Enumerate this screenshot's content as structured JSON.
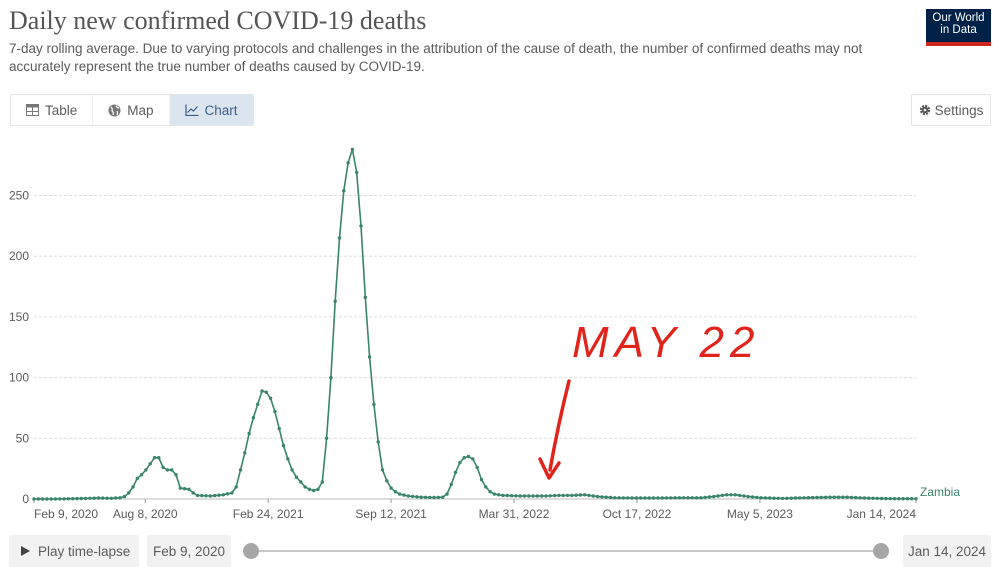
{
  "header": {
    "title": "Daily new confirmed COVID-19 deaths",
    "subtitle": "7-day rolling average. Due to varying protocols and challenges in the attribution of the cause of death, the number of confirmed deaths may not accurately represent the true number of deaths caused by COVID-19.",
    "logo_line1": "Our World",
    "logo_line2": "in Data"
  },
  "tabs": [
    {
      "label": "Table",
      "icon": "table-icon",
      "active": false
    },
    {
      "label": "Map",
      "icon": "globe-icon",
      "active": false
    },
    {
      "label": "Chart",
      "icon": "line-chart-icon",
      "active": true
    }
  ],
  "settings_label": "Settings",
  "colors": {
    "series": "#3a8469",
    "annotation": "#e0241c",
    "grid": "#dddddd",
    "axis_text": "#5b5b5b"
  },
  "annotation": {
    "text": "MAY 22",
    "points_to": "2022-05-22"
  },
  "controls": {
    "play_label": "Play time-lapse",
    "start_date": "Feb 9, 2020",
    "end_date": "Jan 14, 2024",
    "range_start_fraction": 0,
    "range_end_fraction": 1
  },
  "chart_data": {
    "type": "line",
    "title": "Daily new confirmed COVID-19 deaths",
    "xlabel": "",
    "ylabel": "",
    "ylim": [
      0,
      290
    ],
    "yticks": [
      0,
      50,
      100,
      150,
      200,
      250
    ],
    "xlim": [
      "2020-02-09",
      "2024-01-14"
    ],
    "xticks": [
      {
        "date": "2020-02-09",
        "label": "Feb 9, 2020"
      },
      {
        "date": "2020-08-08",
        "label": "Aug 8, 2020"
      },
      {
        "date": "2021-02-24",
        "label": "Feb 24, 2021"
      },
      {
        "date": "2021-09-12",
        "label": "Sep 12, 2021"
      },
      {
        "date": "2022-03-31",
        "label": "Mar 31, 2022"
      },
      {
        "date": "2022-10-17",
        "label": "Oct 17, 2022"
      },
      {
        "date": "2023-05-05",
        "label": "May 5, 2023"
      },
      {
        "date": "2024-01-14",
        "label": "Jan 14, 2024"
      }
    ],
    "grid": true,
    "legend": "end-of-line label",
    "series": [
      {
        "name": "Zambia",
        "points": [
          [
            "2020-02-09",
            0
          ],
          [
            "2020-03-15",
            0
          ],
          [
            "2020-04-19",
            0.3
          ],
          [
            "2020-05-24",
            0.8
          ],
          [
            "2020-06-14",
            0.6
          ],
          [
            "2020-06-28",
            1
          ],
          [
            "2020-07-05",
            2
          ],
          [
            "2020-07-12",
            5
          ],
          [
            "2020-07-19",
            10
          ],
          [
            "2020-07-26",
            17
          ],
          [
            "2020-08-02",
            20
          ],
          [
            "2020-08-09",
            24
          ],
          [
            "2020-08-16",
            29
          ],
          [
            "2020-08-23",
            34
          ],
          [
            "2020-08-30",
            34
          ],
          [
            "2020-09-06",
            26
          ],
          [
            "2020-09-13",
            24
          ],
          [
            "2020-09-20",
            24
          ],
          [
            "2020-09-27",
            20
          ],
          [
            "2020-10-04",
            9
          ],
          [
            "2020-10-18",
            8
          ],
          [
            "2020-10-25",
            5
          ],
          [
            "2020-11-01",
            3
          ],
          [
            "2020-11-22",
            2.5
          ],
          [
            "2020-12-13",
            3.5
          ],
          [
            "2020-12-27",
            5
          ],
          [
            "2021-01-03",
            10
          ],
          [
            "2021-01-10",
            24
          ],
          [
            "2021-01-17",
            38
          ],
          [
            "2021-01-24",
            54
          ],
          [
            "2021-01-31",
            67
          ],
          [
            "2021-02-07",
            78
          ],
          [
            "2021-02-14",
            89
          ],
          [
            "2021-02-21",
            88
          ],
          [
            "2021-02-28",
            83
          ],
          [
            "2021-03-07",
            72
          ],
          [
            "2021-03-14",
            58
          ],
          [
            "2021-03-21",
            44
          ],
          [
            "2021-03-28",
            33
          ],
          [
            "2021-04-04",
            24
          ],
          [
            "2021-04-11",
            18
          ],
          [
            "2021-04-18",
            14
          ],
          [
            "2021-04-25",
            10
          ],
          [
            "2021-05-02",
            8
          ],
          [
            "2021-05-09",
            7
          ],
          [
            "2021-05-16",
            8
          ],
          [
            "2021-05-23",
            14
          ],
          [
            "2021-05-30",
            50
          ],
          [
            "2021-06-06",
            100
          ],
          [
            "2021-06-13",
            163
          ],
          [
            "2021-06-20",
            215
          ],
          [
            "2021-06-27",
            254
          ],
          [
            "2021-07-04",
            277
          ],
          [
            "2021-07-11",
            288
          ],
          [
            "2021-07-18",
            269
          ],
          [
            "2021-07-25",
            225
          ],
          [
            "2021-08-01",
            166
          ],
          [
            "2021-08-08",
            117
          ],
          [
            "2021-08-15",
            78
          ],
          [
            "2021-08-22",
            47
          ],
          [
            "2021-08-29",
            24
          ],
          [
            "2021-09-05",
            15
          ],
          [
            "2021-09-12",
            9
          ],
          [
            "2021-09-19",
            6
          ],
          [
            "2021-09-26",
            4
          ],
          [
            "2021-10-10",
            2.5
          ],
          [
            "2021-10-31",
            1.5
          ],
          [
            "2021-11-21",
            1.2
          ],
          [
            "2021-12-05",
            1.5
          ],
          [
            "2021-12-12",
            4
          ],
          [
            "2021-12-19",
            12
          ],
          [
            "2021-12-26",
            22
          ],
          [
            "2022-01-02",
            30
          ],
          [
            "2022-01-09",
            34
          ],
          [
            "2022-01-16",
            35
          ],
          [
            "2022-01-23",
            33
          ],
          [
            "2022-01-30",
            26
          ],
          [
            "2022-02-06",
            16
          ],
          [
            "2022-02-13",
            10
          ],
          [
            "2022-02-20",
            6
          ],
          [
            "2022-02-27",
            4
          ],
          [
            "2022-03-13",
            3
          ],
          [
            "2022-04-10",
            2.5
          ],
          [
            "2022-05-22",
            2.5
          ],
          [
            "2022-06-12",
            3
          ],
          [
            "2022-07-03",
            3
          ],
          [
            "2022-07-24",
            3.5
          ],
          [
            "2022-08-14",
            2
          ],
          [
            "2022-09-11",
            1
          ],
          [
            "2022-10-16",
            0.8
          ],
          [
            "2022-11-20",
            0.8
          ],
          [
            "2022-12-25",
            1
          ],
          [
            "2023-01-29",
            1
          ],
          [
            "2023-02-19",
            2
          ],
          [
            "2023-03-12",
            3.5
          ],
          [
            "2023-03-26",
            3.5
          ],
          [
            "2023-04-16",
            2
          ],
          [
            "2023-05-07",
            1
          ],
          [
            "2023-06-11",
            0.5
          ],
          [
            "2023-07-16",
            1
          ],
          [
            "2023-08-27",
            1.5
          ],
          [
            "2023-09-24",
            1.5
          ],
          [
            "2023-10-22",
            0.8
          ],
          [
            "2023-11-26",
            0.3
          ],
          [
            "2024-01-14",
            0.2
          ]
        ]
      }
    ]
  }
}
